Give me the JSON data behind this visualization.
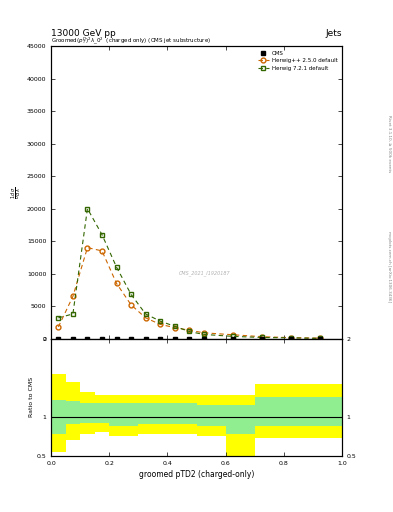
{
  "title_top": "13000 GeV pp",
  "title_right": "Jets",
  "plot_title": "Groomed$(p_T^D)^2\\lambda\\_0^2$  (charged only) (CMS jet substructure)",
  "xlabel": "groomed pTD2 (charged-only)",
  "herwig_pp_x": [
    0.025,
    0.075,
    0.125,
    0.175,
    0.225,
    0.275,
    0.325,
    0.375,
    0.425,
    0.475,
    0.525,
    0.625,
    0.725,
    0.825,
    0.925
  ],
  "herwig_pp_y": [
    1800,
    6500,
    14000,
    13500,
    8500,
    5200,
    3200,
    2200,
    1700,
    1300,
    900,
    600,
    300,
    150,
    80
  ],
  "herwig72_x": [
    0.025,
    0.075,
    0.125,
    0.175,
    0.225,
    0.275,
    0.325,
    0.375,
    0.425,
    0.475,
    0.525,
    0.625,
    0.725,
    0.825,
    0.925
  ],
  "herwig72_y": [
    3200,
    3800,
    20000,
    16000,
    11000,
    6800,
    3800,
    2700,
    1900,
    1100,
    650,
    350,
    180,
    120,
    40
  ],
  "cms_x": [
    0.025,
    0.075,
    0.125,
    0.175,
    0.225,
    0.275,
    0.325,
    0.375,
    0.425,
    0.475,
    0.525,
    0.625,
    0.725,
    0.825,
    0.925
  ],
  "cms_y": [
    0,
    0,
    0,
    0,
    0,
    0,
    0,
    0,
    0,
    0,
    0,
    0,
    0,
    0,
    0
  ],
  "ylim": [
    0,
    45000
  ],
  "xlim": [
    0,
    1
  ],
  "yticks": [
    0,
    5000,
    10000,
    15000,
    20000,
    25000,
    30000,
    35000,
    40000,
    45000
  ],
  "ytick_labels": [
    "0",
    "5000",
    "10000",
    "15000",
    "20000",
    "25000",
    "30000",
    "35000",
    "40000",
    "45000"
  ],
  "ratio_ylim": [
    0.5,
    2.0
  ],
  "herwig_pp_color": "#cc6600",
  "herwig72_color": "#336600",
  "cms_color": "black",
  "ratio_band_x": [
    0.0,
    0.05,
    0.1,
    0.15,
    0.2,
    0.3,
    0.4,
    0.5,
    0.6,
    0.7,
    0.8,
    0.9,
    1.0
  ],
  "ratio_green_low": [
    0.78,
    0.9,
    0.92,
    0.92,
    0.88,
    0.9,
    0.9,
    0.88,
    0.78,
    0.88,
    0.88,
    0.88,
    0.88
  ],
  "ratio_green_high": [
    1.22,
    1.2,
    1.18,
    1.18,
    1.18,
    1.18,
    1.18,
    1.15,
    1.15,
    1.25,
    1.25,
    1.25,
    1.25
  ],
  "ratio_yellow_low": [
    0.55,
    0.7,
    0.78,
    0.8,
    0.75,
    0.78,
    0.78,
    0.75,
    0.5,
    0.73,
    0.73,
    0.73,
    0.73
  ],
  "ratio_yellow_high": [
    1.55,
    1.45,
    1.32,
    1.28,
    1.28,
    1.28,
    1.28,
    1.28,
    1.28,
    1.42,
    1.42,
    1.42,
    1.42
  ],
  "watermark": "CMS_2021_I1920187",
  "right_label1": "Rivet 3.1.10, ≥ 500k events",
  "right_label2": "mcplots.cern.ch [arXiv:1306.3436]"
}
